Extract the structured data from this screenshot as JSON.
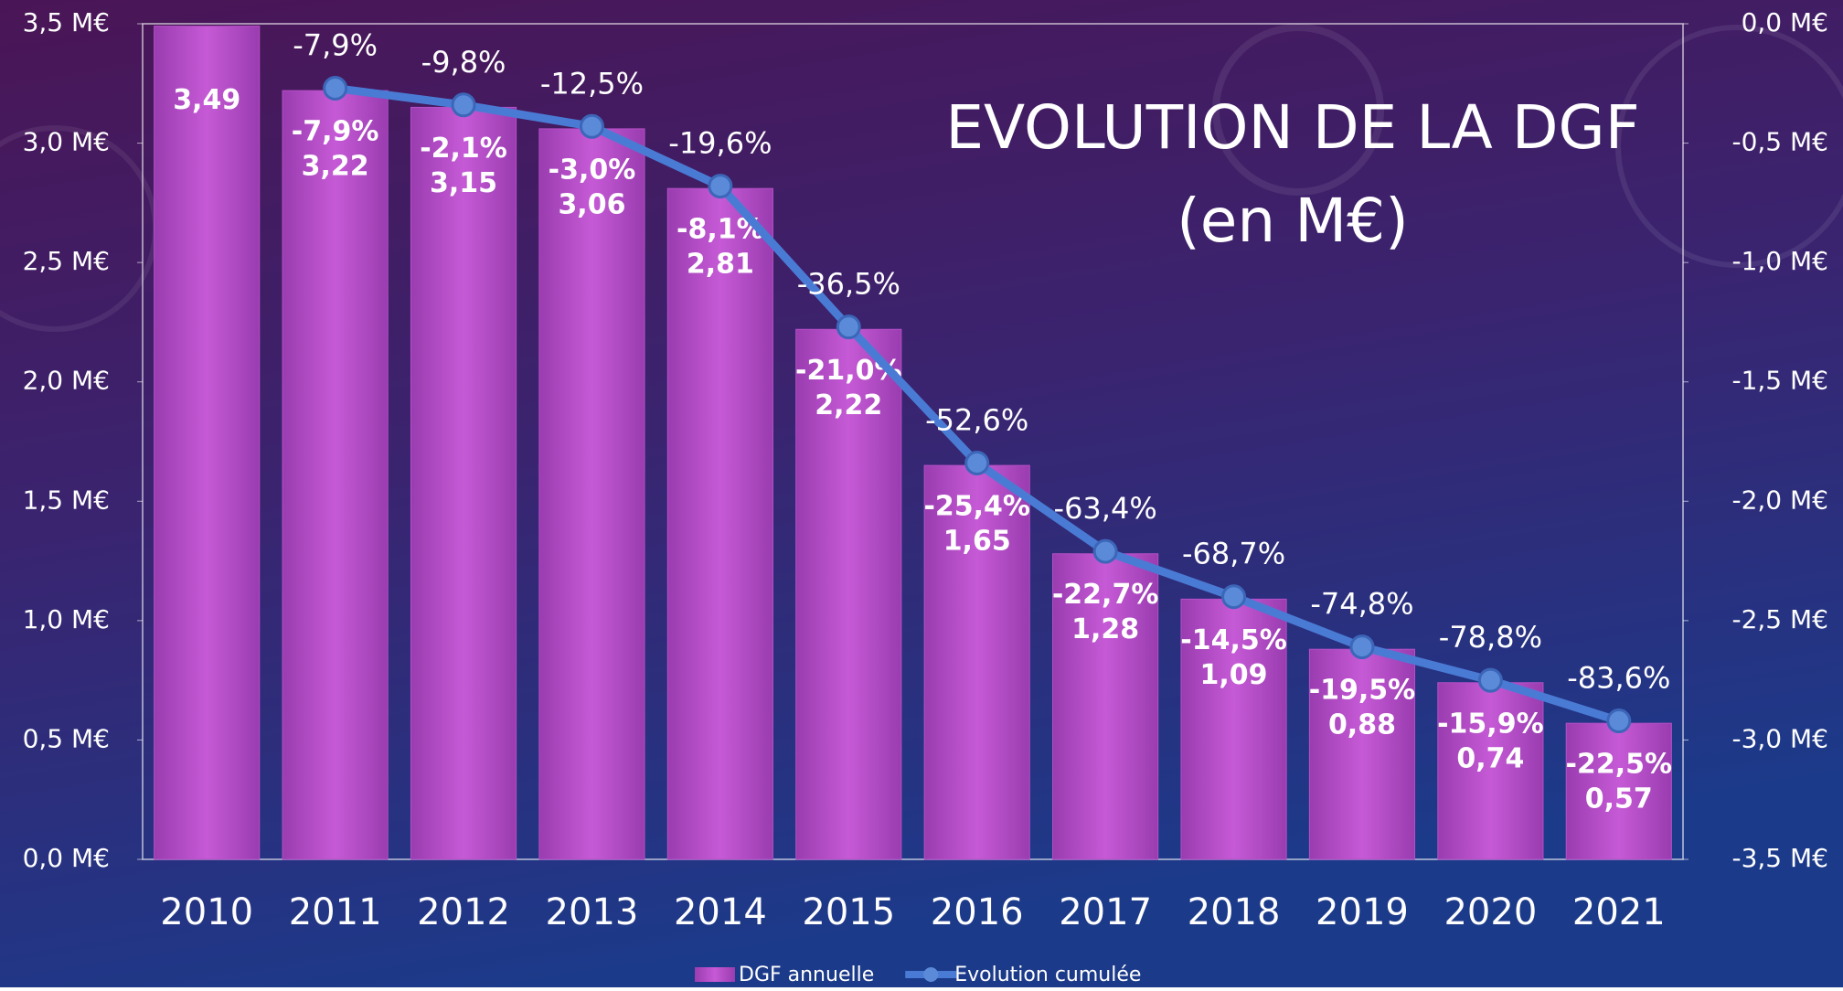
{
  "chart_data": {
    "type": "bar",
    "title": "EVOLUTION DE LA DGF",
    "subtitle": "(en M€)",
    "categories": [
      "2010",
      "2011",
      "2012",
      "2013",
      "2014",
      "2015",
      "2016",
      "2017",
      "2018",
      "2019",
      "2020",
      "2021"
    ],
    "series": [
      {
        "name": "DGF annuelle",
        "type": "bar",
        "color": "#b550c8",
        "values": [
          3.49,
          3.22,
          3.15,
          3.06,
          2.81,
          2.22,
          1.65,
          1.28,
          1.09,
          0.88,
          0.74,
          0.57
        ],
        "value_labels": [
          "3,49",
          "3,22",
          "3,15",
          "3,06",
          "2,81",
          "2,22",
          "1,65",
          "1,28",
          "1,09",
          "0,88",
          "0,74",
          "0,57"
        ],
        "change_labels": [
          null,
          "-7,9%",
          "-2,1%",
          "-3,0%",
          "-8,1%",
          "-21,0%",
          "-25,4%",
          "-22,7%",
          "-14,5%",
          "-19,5%",
          "-15,9%",
          "-22,5%"
        ]
      },
      {
        "name": "Evolution cumulée",
        "type": "line",
        "axis": "y2",
        "color": "#4a7bd4",
        "values": [
          null,
          -0.27,
          -0.34,
          -0.43,
          -0.68,
          -1.27,
          -1.84,
          -2.21,
          -2.4,
          -2.61,
          -2.75,
          -2.92
        ],
        "point_labels": [
          null,
          "-7,9%",
          "-9,8%",
          "-12,5%",
          "-19,6%",
          "-36,5%",
          "-52,6%",
          "-63,4%",
          "-68,7%",
          "-74,8%",
          "-78,8%",
          "-83,6%"
        ]
      }
    ],
    "ylim": [
      0,
      3.5
    ],
    "yticks": [
      {
        "value": 0,
        "label": "0,0 M€"
      },
      {
        "value": 0.5,
        "label": "0,5 M€"
      },
      {
        "value": 1,
        "label": "1,0 M€"
      },
      {
        "value": 1.5,
        "label": "1,5 M€"
      },
      {
        "value": 2,
        "label": "2,0 M€"
      },
      {
        "value": 2.5,
        "label": "2,5 M€"
      },
      {
        "value": 3,
        "label": "3,0 M€"
      },
      {
        "value": 3.5,
        "label": "3,5 M€"
      }
    ],
    "y2lim": [
      -3.5,
      0
    ],
    "y2ticks": [
      {
        "value": -3.5,
        "label": "-3,5 M€"
      },
      {
        "value": -3,
        "label": "-3,0 M€"
      },
      {
        "value": -2.5,
        "label": "-2,5 M€"
      },
      {
        "value": -2,
        "label": "-2,0 M€"
      },
      {
        "value": -1.5,
        "label": "-1,5 M€"
      },
      {
        "value": -1,
        "label": "-1,0 M€"
      },
      {
        "value": -0.5,
        "label": "-0,5 M€"
      },
      {
        "value": 0,
        "label": "0,0 M€"
      }
    ],
    "legend": "bottom"
  }
}
